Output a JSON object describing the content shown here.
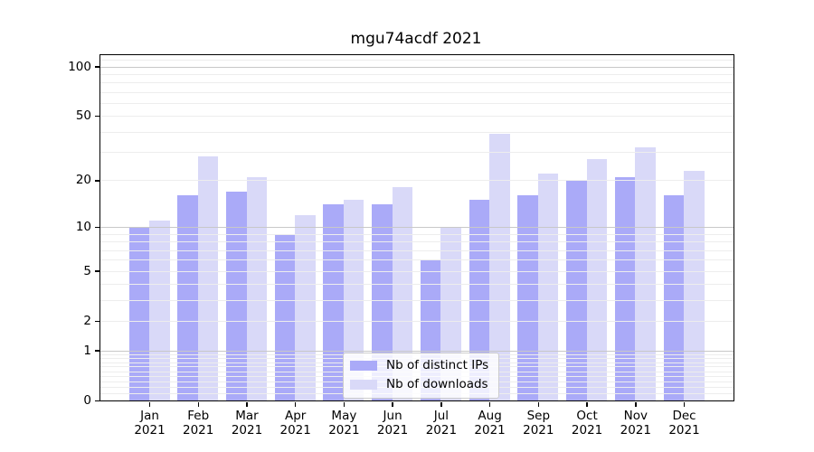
{
  "title": "mgu74acdf 2021",
  "chart_data": {
    "type": "bar",
    "title": "mgu74acdf 2021",
    "categories": [
      "Jan 2021",
      "Feb 2021",
      "Mar 2021",
      "Apr 2021",
      "May 2021",
      "Jun 2021",
      "Jul 2021",
      "Aug 2021",
      "Sep 2021",
      "Oct 2021",
      "Nov 2021",
      "Dec 2021"
    ],
    "series": [
      {
        "name": "Nb of distinct IPs",
        "color": "#aaaaf8",
        "values": [
          10,
          16,
          17,
          9,
          14,
          14,
          6,
          15,
          16,
          20,
          21,
          16
        ]
      },
      {
        "name": "Nb of downloads",
        "color": "#d9d9f8",
        "values": [
          11,
          28,
          21,
          12,
          15,
          18,
          10,
          39,
          22,
          27,
          32,
          23
        ]
      }
    ],
    "xlabel": "",
    "ylabel": "",
    "y_scale": "log1p",
    "y_ticks": [
      0,
      1,
      2,
      5,
      10,
      20,
      50,
      100
    ],
    "ylim": [
      0,
      117
    ],
    "grid": true,
    "grid_major": [
      1,
      10,
      100
    ],
    "grid_minor": [
      0.1,
      0.2,
      0.3,
      0.4,
      0.5,
      0.6,
      0.7,
      0.8,
      0.9,
      2,
      3,
      4,
      5,
      6,
      7,
      8,
      9,
      20,
      30,
      40,
      50,
      60,
      70,
      80,
      90,
      110
    ],
    "legend_position": "lower center",
    "colors": {
      "spine": "#000000",
      "grid_major": "#c8c8c8",
      "grid_minor": "#ededed"
    }
  }
}
